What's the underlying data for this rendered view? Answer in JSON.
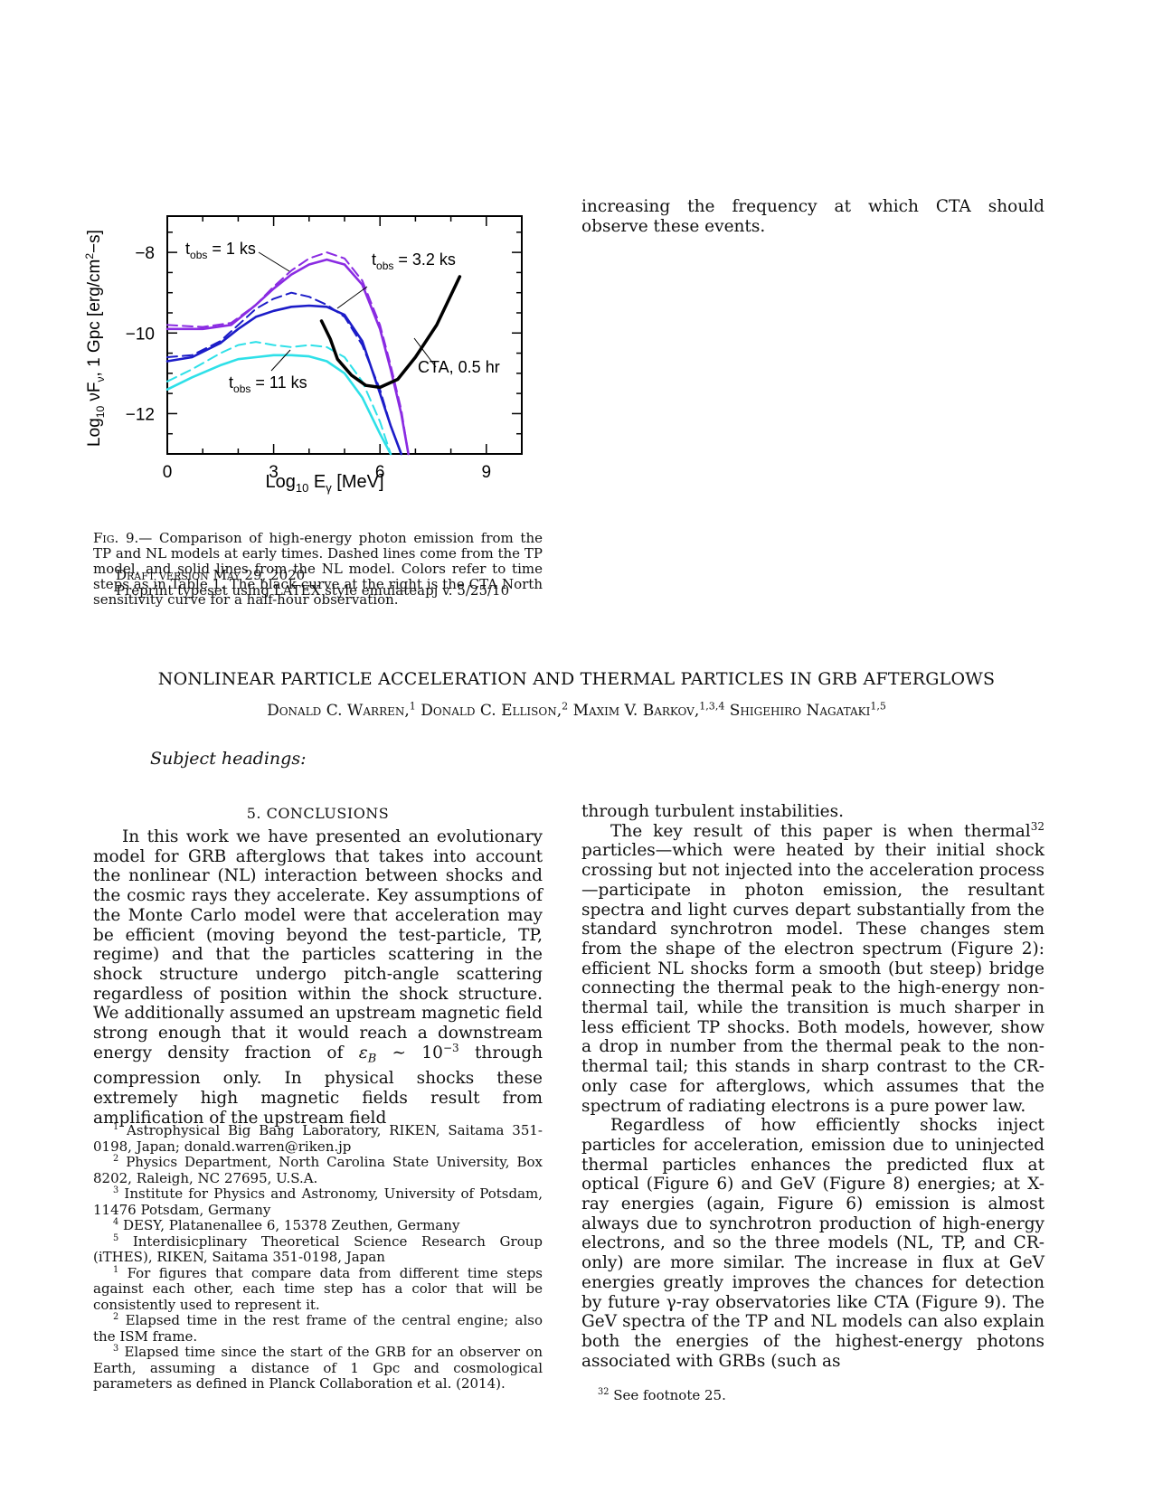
{
  "figure": {
    "ylabel": "Log₁₀ νFν, 1 Gpc [erg/cm²−s]",
    "xlabel": "Log₁₀ Eγ [MeV]",
    "x_ticks": [
      "0",
      "3",
      "6",
      "9"
    ],
    "y_ticks": [
      "−8",
      "−10",
      "−12"
    ],
    "annotations": [
      "t_obs = 1 ks",
      "t_obs = 3.2 ks",
      "t_obs = 11 ks",
      "CTA, 0.5 hr"
    ]
  },
  "chart_data": {
    "type": "line",
    "xlabel": "Log10 Eγ [MeV]",
    "ylabel": "Log10 νFν, 1 Gpc [erg/cm2−s]",
    "xlim": [
      0,
      10
    ],
    "ylim": [
      -13,
      -7.1
    ],
    "series": [
      {
        "name": "t_obs = 1 ks",
        "line": "solid",
        "color": "#8a2be2",
        "x": [
          0,
          1,
          1.8,
          2.5,
          3,
          3.5,
          4,
          4.5,
          5,
          5.5,
          6,
          6.3,
          6.6,
          6.8
        ],
        "y": [
          -9.9,
          -9.9,
          -9.8,
          -9.3,
          -8.9,
          -8.55,
          -8.3,
          -8.18,
          -8.3,
          -8.8,
          -9.9,
          -10.9,
          -12.0,
          -13.0
        ]
      },
      {
        "name": "t_obs = 1 ks",
        "line": "dashed",
        "color": "#8a2be2",
        "x": [
          0,
          1,
          1.8,
          2.5,
          3,
          3.5,
          4,
          4.5,
          5,
          5.5,
          6,
          6.3,
          6.6,
          6.8
        ],
        "y": [
          -9.8,
          -9.85,
          -9.75,
          -9.3,
          -8.85,
          -8.45,
          -8.15,
          -8.0,
          -8.15,
          -8.7,
          -9.8,
          -10.8,
          -11.9,
          -13.0
        ]
      },
      {
        "name": "t_obs = 3.2 ks",
        "line": "solid",
        "color": "#1c1cc8",
        "x": [
          0,
          0.7,
          1.5,
          2,
          2.5,
          3,
          3.5,
          4,
          4.5,
          5,
          5.5,
          6,
          6.3,
          6.6
        ],
        "y": [
          -10.7,
          -10.6,
          -10.25,
          -9.9,
          -9.6,
          -9.45,
          -9.35,
          -9.32,
          -9.35,
          -9.55,
          -10.2,
          -11.5,
          -12.3,
          -13.0
        ]
      },
      {
        "name": "t_obs = 3.2 ks",
        "line": "dashed",
        "color": "#1c1cc8",
        "x": [
          0,
          0.7,
          1.5,
          2,
          2.5,
          3,
          3.5,
          4,
          4.5,
          5,
          5.5,
          6,
          6.3,
          6.6
        ],
        "y": [
          -10.6,
          -10.55,
          -10.2,
          -9.8,
          -9.4,
          -9.15,
          -9.0,
          -9.1,
          -9.3,
          -9.6,
          -10.3,
          -11.4,
          -12.3,
          -13.0
        ]
      },
      {
        "name": "t_obs = 11 ks",
        "line": "solid",
        "color": "#2ee0e8",
        "x": [
          0,
          0.7,
          1.5,
          2,
          2.5,
          3,
          3.5,
          4,
          4.5,
          5,
          5.5,
          6,
          6.3
        ],
        "y": [
          -11.4,
          -11.1,
          -10.8,
          -10.65,
          -10.6,
          -10.55,
          -10.55,
          -10.58,
          -10.7,
          -11.0,
          -11.6,
          -12.5,
          -13.0
        ]
      },
      {
        "name": "t_obs = 11 ks",
        "line": "dashed",
        "color": "#2ee0e8",
        "x": [
          0,
          0.7,
          1.5,
          2,
          2.5,
          3,
          3.5,
          4,
          4.5,
          5,
          5.5,
          6,
          6.3
        ],
        "y": [
          -11.2,
          -10.9,
          -10.5,
          -10.3,
          -10.22,
          -10.3,
          -10.35,
          -10.3,
          -10.35,
          -10.6,
          -11.2,
          -12.2,
          -13.0
        ]
      },
      {
        "name": "CTA, 0.5 hr",
        "line": "solid",
        "color": "#000000",
        "x": [
          4.35,
          4.6,
          4.8,
          5.2,
          5.6,
          6.0,
          6.5,
          7.0,
          7.6,
          8.25
        ],
        "y": [
          -9.7,
          -10.15,
          -10.65,
          -11.05,
          -11.3,
          -11.35,
          -11.15,
          -10.6,
          -9.8,
          -8.6
        ]
      }
    ]
  },
  "caption": {
    "label": "Fig. 9.—",
    "text": "Comparison of high-energy photon emission from the TP and NL models at early times. Dashed lines come from the TP model, and solid lines from the NL model. Colors refer to time steps as in Table 1. The black curve at the right is the CTA North sensitivity curve for a half-hour observation."
  },
  "overlay": {
    "draft": "Draft version May 29, 2020",
    "preprint": "Preprint typeset using LATEX style emulateapj v. 5/25/10"
  },
  "col2_top": "increasing the frequency at which CTA should observe these events.",
  "title": "NONLINEAR PARTICLE ACCELERATION AND THERMAL PARTICLES IN GRB AFTERGLOWS",
  "authors": [
    {
      "name": "Donald C. Warren,",
      "sup": "1"
    },
    {
      "name": "Donald C. Ellison,",
      "sup": "2"
    },
    {
      "name": "Maxim V. Barkov,",
      "sup": "1,3,4"
    },
    {
      "name": "Shigehiro Nagataki",
      "sup": "1,5"
    }
  ],
  "subject_headings": "Subject headings:",
  "section_heading": "5. CONCLUSIONS",
  "col1": {
    "p1_a": "In this work we have presented an evolutionary model for GRB afterglows that takes into account the nonlinear (NL) interaction between shocks and the cosmic rays they accelerate. Key assumptions of the Monte Carlo model were that acceleration may be efficient (moving beyond the test-particle, TP, regime) and that the particles scattering in the shock structure undergo pitch-angle scattering regardless of position within the shock structure. We additionally assumed an upstream magnetic field strong enough that it would reach a downstream energy density fraction of ",
    "p1_eps": "ε",
    "p1_sub": "B",
    "p1_sim": " ∼ 10",
    "p1_exp": "−3",
    "p1_b": " through compression only. In physical shocks these extremely high magnetic fields result from amplification of the upstream field"
  },
  "col2": {
    "p0": "through turbulent instabilities.",
    "p1_a": "The key result of this paper is when thermal",
    "p1_sup": "32",
    "p1_b": " particles—which were heated by their initial shock crossing but not injected into the acceleration process—participate in photon emission, the resultant spectra and light curves depart substantially from the standard synchrotron model. These changes stem from the shape of the electron spectrum (Figure 2): efficient NL shocks form a smooth (but steep) bridge connecting the thermal peak to the high-energy non-thermal tail, while the transition is much sharper in less efficient TP shocks. Both models, however, show a drop in number from the thermal peak to the non-thermal tail; this stands in sharp contrast to the CR-only case for afterglows, which assumes that the spectrum of radiating electrons is a pure power law.",
    "p2": "Regardless of how efficiently shocks inject particles for acceleration, emission due to uninjected thermal particles enhances the predicted flux at optical (Figure 6) and GeV (Figure 8) energies; at X-ray energies (again, Figure 6) emission is almost always due to synchrotron production of high-energy electrons, and so the three models (NL, TP, and CR-only) are more similar. The increase in flux at GeV energies greatly improves the chances for detection by future γ-ray observatories like CTA (Figure 9). The GeV spectra of the TP and NL models can also explain both the energies of the highest-energy photons associated with GRBs (such as"
  },
  "footnotes": [
    {
      "sup": "1",
      "text": "Astrophysical Big Bang Laboratory, RIKEN, Saitama 351-0198, Japan; donald.warren@riken.jp"
    },
    {
      "sup": "2",
      "text": "Physics Department, North Carolina State University, Box 8202, Raleigh, NC 27695, U.S.A."
    },
    {
      "sup": "3",
      "text": "Institute for Physics and Astronomy, University of Potsdam, 11476 Potsdam, Germany"
    },
    {
      "sup": "4",
      "text": "DESY, Platanenallee 6, 15378 Zeuthen, Germany"
    },
    {
      "sup": "5",
      "text": "Interdisicplinary Theoretical Science Research Group (iTHES), RIKEN, Saitama 351-0198, Japan"
    },
    {
      "sup": "1",
      "text": "For figures that compare data from different time steps against each other, each time step has a color that will be consistently used to represent it."
    },
    {
      "sup": "2",
      "text": "Elapsed time in the rest frame of the central engine; also the ISM frame."
    },
    {
      "sup": "3",
      "text": "Elapsed time since the start of the GRB for an observer on Earth, assuming a distance of 1 Gpc and cosmological parameters as defined in Planck Collaboration et al. (2014)."
    }
  ],
  "footnote_right": {
    "sup": "32",
    "text": "See footnote 25."
  }
}
